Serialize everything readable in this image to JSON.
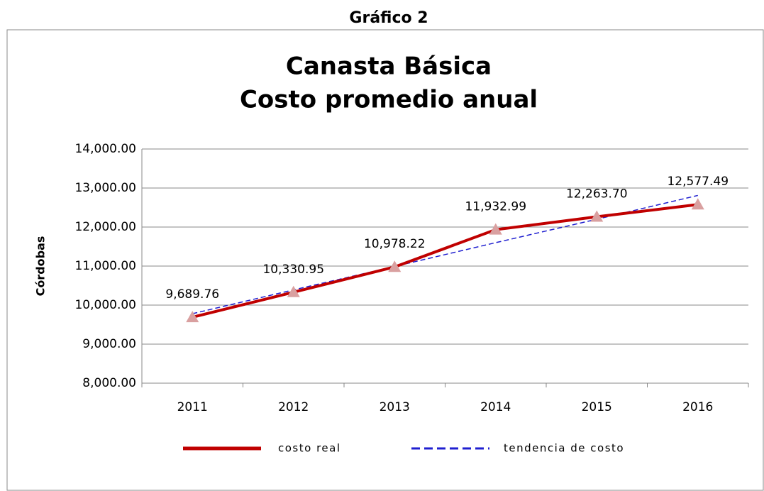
{
  "chart_data": {
    "type": "line",
    "header": "Gráfico 2",
    "title": "Canasta Básica",
    "subtitle": "Costo promedio anual",
    "ylabel": "Córdobas",
    "categories": [
      "2011",
      "2012",
      "2013",
      "2014",
      "2015",
      "2016"
    ],
    "series": [
      {
        "name": "costo real",
        "color": "#c00000",
        "marker_color": "#d9a0a0",
        "values": [
          9689.76,
          10330.95,
          10978.22,
          11932.99,
          12263.7,
          12577.49
        ],
        "value_labels": [
          "9,689.76",
          "10,330.95",
          "10,978.22",
          "11,932.99",
          "12,263.70",
          "12,577.49"
        ]
      },
      {
        "name": "tendencia de costo",
        "color": "#1f1fd0",
        "dashed": true,
        "values": [
          9780,
          10390,
          10990,
          11600,
          12200,
          12810
        ]
      }
    ],
    "ylim": [
      8000,
      14000
    ],
    "yticks": [
      {
        "value": 8000,
        "label": "8,000.00"
      },
      {
        "value": 9000,
        "label": "9,000.00"
      },
      {
        "value": 10000,
        "label": "10,000.00"
      },
      {
        "value": 11000,
        "label": "11,000.00"
      },
      {
        "value": 12000,
        "label": "12,000.00"
      },
      {
        "value": 13000,
        "label": "13,000.00"
      },
      {
        "value": 14000,
        "label": "14,000.00"
      }
    ],
    "grid": true,
    "legend": "bottom"
  }
}
